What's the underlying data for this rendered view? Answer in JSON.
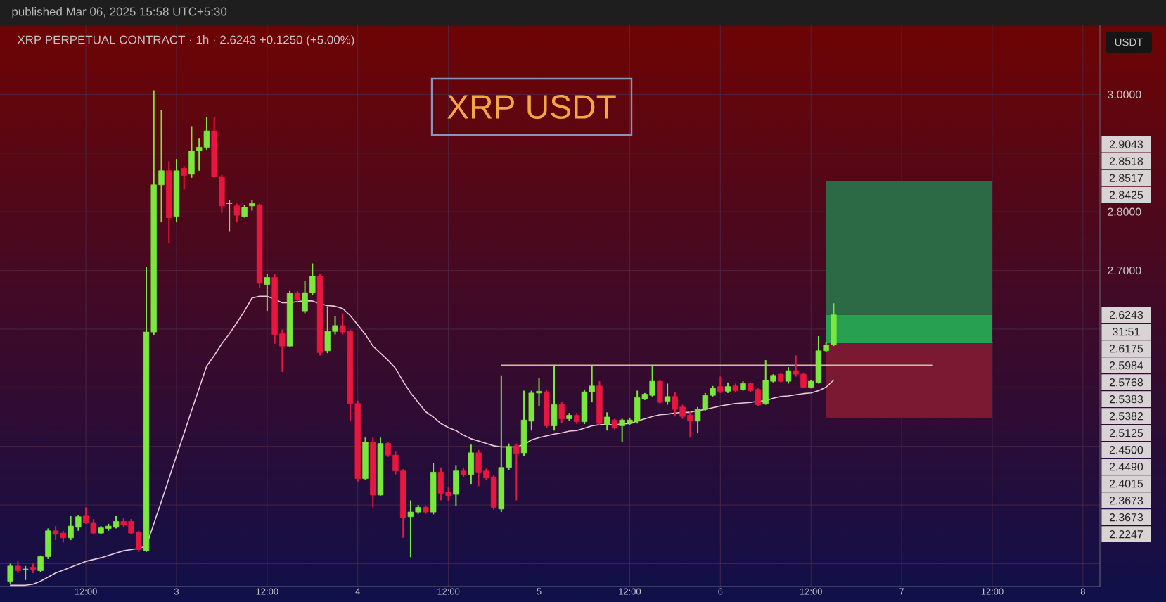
{
  "chart_data": {
    "type": "candlestick",
    "title": "XRP USDT",
    "subtitle": "XRP PERPETUAL CONTRACT · 1h · 2.6243 +0.1250 (+5.00%)",
    "ylabel": "USDT",
    "annotations": [
      "published Mar 06, 2025 15:58 UTC+5:30",
      "2.9043",
      "2.8518",
      "2.8517",
      "2.8425",
      {
        "text": "2.6243",
        "y": 2.6243
      },
      "31:51",
      "2.6175",
      "2.5984",
      "2.5768",
      "2.5383",
      "2.5382",
      "2.5125",
      "2.4500",
      "2.4490",
      "2.4015",
      "2.3673",
      "2.3673",
      "2.2247"
    ],
    "x": [
      "2025-03-02T02:00",
      "2025-03-02T03:00",
      "2025-03-02T04:00",
      "2025-03-02T05:00",
      "2025-03-02T06:00",
      "2025-03-02T07:00",
      "2025-03-02T08:00",
      "2025-03-02T09:00",
      "2025-03-02T10:00",
      "2025-03-02T11:00",
      "2025-03-02T12:00",
      "2025-03-02T13:00",
      "2025-03-02T14:00",
      "2025-03-02T15:00",
      "2025-03-02T16:00",
      "2025-03-02T17:00",
      "2025-03-02T18:00",
      "2025-03-02T19:00",
      "2025-03-02T20:00",
      "2025-03-02T21:00",
      "2025-03-02T22:00",
      "2025-03-02T23:00",
      "2025-03-03T00:00",
      "2025-03-03T01:00",
      "2025-03-03T02:00",
      "2025-03-03T03:00",
      "2025-03-03T04:00",
      "2025-03-03T05:00",
      "2025-03-03T06:00",
      "2025-03-03T07:00",
      "2025-03-03T08:00",
      "2025-03-03T09:00",
      "2025-03-03T10:00",
      "2025-03-03T11:00",
      "2025-03-03T12:00",
      "2025-03-03T13:00",
      "2025-03-03T14:00",
      "2025-03-03T15:00",
      "2025-03-03T16:00",
      "2025-03-03T17:00",
      "2025-03-03T18:00",
      "2025-03-03T19:00",
      "2025-03-03T20:00",
      "2025-03-03T21:00",
      "2025-03-03T22:00",
      "2025-03-03T23:00",
      "2025-03-04T00:00",
      "2025-03-04T01:00",
      "2025-03-04T02:00",
      "2025-03-04T03:00",
      "2025-03-04T04:00",
      "2025-03-04T05:00",
      "2025-03-04T06:00",
      "2025-03-04T07:00",
      "2025-03-04T08:00",
      "2025-03-04T09:00",
      "2025-03-04T10:00",
      "2025-03-04T11:00",
      "2025-03-04T12:00",
      "2025-03-04T13:00",
      "2025-03-04T14:00",
      "2025-03-04T15:00",
      "2025-03-04T16:00",
      "2025-03-04T17:00",
      "2025-03-04T18:00",
      "2025-03-04T19:00",
      "2025-03-04T20:00",
      "2025-03-04T21:00",
      "2025-03-04T22:00",
      "2025-03-04T23:00",
      "2025-03-05T00:00",
      "2025-03-05T01:00",
      "2025-03-05T02:00",
      "2025-03-05T03:00",
      "2025-03-05T04:00",
      "2025-03-05T05:00",
      "2025-03-05T06:00",
      "2025-03-05T07:00",
      "2025-03-05T08:00",
      "2025-03-05T09:00",
      "2025-03-05T10:00",
      "2025-03-05T11:00",
      "2025-03-05T12:00",
      "2025-03-05T13:00",
      "2025-03-05T14:00",
      "2025-03-05T15:00",
      "2025-03-05T16:00",
      "2025-03-05T17:00",
      "2025-03-05T18:00",
      "2025-03-05T19:00",
      "2025-03-05T20:00",
      "2025-03-05T21:00",
      "2025-03-05T22:00",
      "2025-03-05T23:00",
      "2025-03-06T00:00",
      "2025-03-06T01:00",
      "2025-03-06T02:00",
      "2025-03-06T03:00",
      "2025-03-06T04:00",
      "2025-03-06T05:00",
      "2025-03-06T06:00",
      "2025-03-06T07:00",
      "2025-03-06T08:00",
      "2025-03-06T09:00",
      "2025-03-06T10:00",
      "2025-03-06T11:00",
      "2025-03-06T12:00",
      "2025-03-06T13:00",
      "2025-03-06T14:00",
      "2025-03-06T15:00"
    ],
    "series": [
      {
        "type": "line",
        "color": "#2c6a45",
        "x": [
          "2025-03-06T14:00",
          "2025-03-07T12:00"
        ],
        "values": [
          2.8518,
          2.8518
        ],
        "lower": [
          2.6243,
          2.6243
        ],
        "upper": [
          2.8518,
          2.8518
        ]
      },
      {
        "type": "line",
        "color": "#27a052",
        "x": [
          "2025-03-06T14:00",
          "2025-03-07T12:00"
        ],
        "values": [
          2.5768,
          2.5768
        ],
        "lower": [
          2.5768,
          2.5768
        ],
        "upper": [
          2.6243,
          2.6243
        ]
      },
      {
        "type": "line",
        "color": "#7a1931",
        "x": [
          "2025-03-06T14:00",
          "2025-03-07T12:00"
        ],
        "values": [
          2.449,
          2.449
        ],
        "lower": [
          2.449,
          2.449
        ],
        "upper": [
          2.5768,
          2.5768
        ]
      },
      {
        "type": "line",
        "color": "#e8cbd5",
        "values": [
          2.163,
          2.163,
          2.163,
          2.165,
          2.17,
          2.177,
          2.184,
          2.189,
          2.194,
          2.199,
          2.204,
          2.207,
          2.21,
          2.214,
          2.218,
          2.222,
          2.224,
          2.226,
          2.23,
          2.268,
          2.306,
          2.345,
          2.384,
          2.422,
          2.461,
          2.499,
          2.537,
          2.555,
          2.575,
          2.592,
          2.611,
          2.631,
          2.653,
          2.656,
          2.656,
          2.651,
          2.645,
          2.645,
          2.647,
          2.648,
          2.648,
          2.643,
          2.64,
          2.639,
          2.635,
          2.623,
          2.607,
          2.591,
          2.571,
          2.559,
          2.547,
          2.533,
          2.511,
          2.491,
          2.475,
          2.459,
          2.45,
          2.439,
          2.432,
          2.427,
          2.419,
          2.413,
          2.409,
          2.405,
          2.401,
          2.399,
          2.399,
          2.399,
          2.403,
          2.411,
          2.415,
          2.418,
          2.421,
          2.423,
          2.426,
          2.427,
          2.431,
          2.435,
          2.437,
          2.437,
          2.437,
          2.438,
          2.439,
          2.443,
          2.447,
          2.451,
          2.454,
          2.455,
          2.457,
          2.458,
          2.458,
          2.461,
          2.463,
          2.466,
          2.469,
          2.471,
          2.473,
          2.474,
          2.475,
          2.477,
          2.478,
          2.482,
          2.485,
          2.486,
          2.488,
          2.49,
          2.491,
          2.495,
          2.501,
          2.513
        ]
      },
      {
        "type": "line",
        "color": "#d8b8a8",
        "x": [
          "2025-03-04T19:00",
          "2025-03-07T04:00"
        ],
        "values": [
          2.5383,
          2.5383
        ]
      },
      {
        "ohlc": [
          [
            2.17,
            2.2,
            2.166,
            2.196
          ],
          [
            2.196,
            2.204,
            2.184,
            2.188
          ],
          [
            2.19,
            2.196,
            2.172,
            2.191
          ],
          [
            2.194,
            2.2,
            2.184,
            2.19
          ],
          [
            2.188,
            2.214,
            2.186,
            2.212
          ],
          [
            2.212,
            2.26,
            2.208,
            2.256
          ],
          [
            2.256,
            2.264,
            2.24,
            2.25
          ],
          [
            2.252,
            2.256,
            2.236,
            2.244
          ],
          [
            2.244,
            2.281,
            2.24,
            2.264
          ],
          [
            2.262,
            2.282,
            2.256,
            2.28
          ],
          [
            2.281,
            2.296,
            2.268,
            2.27
          ],
          [
            2.27,
            2.276,
            2.25,
            2.252
          ],
          [
            2.252,
            2.264,
            2.25,
            2.261
          ],
          [
            2.26,
            2.268,
            2.256,
            2.264
          ],
          [
            2.262,
            2.281,
            2.26,
            2.272
          ],
          [
            2.272,
            2.278,
            2.262,
            2.266
          ],
          [
            2.272,
            2.276,
            2.25,
            2.252
          ],
          [
            2.254,
            2.256,
            2.22,
            2.224
          ],
          [
            2.222,
            2.706,
            2.22,
            2.595
          ],
          [
            2.595,
            3.007,
            2.59,
            2.846
          ],
          [
            2.846,
            2.974,
            2.782,
            2.87
          ],
          [
            2.87,
            2.886,
            2.746,
            2.79
          ],
          [
            2.792,
            2.89,
            2.782,
            2.87
          ],
          [
            2.874,
            2.878,
            2.838,
            2.862
          ],
          [
            2.864,
            2.946,
            2.858,
            2.904
          ],
          [
            2.904,
            2.926,
            2.87,
            2.91
          ],
          [
            2.91,
            2.962,
            2.906,
            2.938
          ],
          [
            2.938,
            2.962,
            2.858,
            2.86
          ],
          [
            2.86,
            2.863,
            2.798,
            2.81
          ],
          [
            2.814,
            2.82,
            2.766,
            2.815
          ],
          [
            2.81,
            2.814,
            2.782,
            2.794
          ],
          [
            2.792,
            2.811,
            2.79,
            2.808
          ],
          [
            2.81,
            2.82,
            2.802,
            2.814
          ],
          [
            2.812,
            2.814,
            2.67,
            2.678
          ],
          [
            2.676,
            2.694,
            2.631,
            2.688
          ],
          [
            2.688,
            2.694,
            2.575,
            2.591
          ],
          [
            2.592,
            2.599,
            2.527,
            2.571
          ],
          [
            2.571,
            2.665,
            2.569,
            2.661
          ],
          [
            2.662,
            2.665,
            2.645,
            2.65
          ],
          [
            2.631,
            2.682,
            2.627,
            2.662
          ],
          [
            2.662,
            2.712,
            2.658,
            2.69
          ],
          [
            2.69,
            2.694,
            2.555,
            2.56
          ],
          [
            2.563,
            2.639,
            2.559,
            2.596
          ],
          [
            2.596,
            2.622,
            2.591,
            2.606
          ],
          [
            2.606,
            2.627,
            2.591,
            2.595
          ],
          [
            2.596,
            2.599,
            2.443,
            2.473
          ],
          [
            2.473,
            2.478,
            2.34,
            2.345
          ],
          [
            2.345,
            2.415,
            2.343,
            2.407
          ],
          [
            2.407,
            2.415,
            2.296,
            2.317
          ],
          [
            2.317,
            2.415,
            2.316,
            2.405
          ],
          [
            2.405,
            2.407,
            2.382,
            2.385
          ],
          [
            2.385,
            2.391,
            2.352,
            2.358
          ],
          [
            2.358,
            2.361,
            2.244,
            2.278
          ],
          [
            2.28,
            2.308,
            2.211,
            2.288
          ],
          [
            2.288,
            2.3,
            2.285,
            2.296
          ],
          [
            2.296,
            2.298,
            2.285,
            2.288
          ],
          [
            2.288,
            2.372,
            2.284,
            2.356
          ],
          [
            2.356,
            2.364,
            2.308,
            2.32
          ],
          [
            2.322,
            2.33,
            2.306,
            2.316
          ],
          [
            2.318,
            2.368,
            2.298,
            2.358
          ],
          [
            2.358,
            2.364,
            2.348,
            2.352
          ],
          [
            2.352,
            2.403,
            2.336,
            2.389
          ],
          [
            2.389,
            2.394,
            2.332,
            2.356
          ],
          [
            2.358,
            2.362,
            2.342,
            2.346
          ],
          [
            2.348,
            2.352,
            2.292,
            2.296
          ],
          [
            2.293,
            2.521,
            2.288,
            2.364
          ],
          [
            2.364,
            2.405,
            2.36,
            2.4
          ],
          [
            2.401,
            2.405,
            2.308,
            2.388
          ],
          [
            2.389,
            2.495,
            2.384,
            2.445
          ],
          [
            2.443,
            2.495,
            2.427,
            2.491
          ],
          [
            2.491,
            2.517,
            2.469,
            2.494
          ],
          [
            2.493,
            2.497,
            2.432,
            2.435
          ],
          [
            2.435,
            2.539,
            2.427,
            2.471
          ],
          [
            2.471,
            2.475,
            2.44,
            2.447
          ],
          [
            2.447,
            2.457,
            2.443,
            2.453
          ],
          [
            2.453,
            2.457,
            2.438,
            2.442
          ],
          [
            2.442,
            2.497,
            2.438,
            2.493
          ],
          [
            2.493,
            2.537,
            2.475,
            2.503
          ],
          [
            2.503,
            2.511,
            2.437,
            2.439
          ],
          [
            2.437,
            2.458,
            2.427,
            2.45
          ],
          [
            2.445,
            2.447,
            2.429,
            2.432
          ],
          [
            2.435,
            2.447,
            2.407,
            2.445
          ],
          [
            2.439,
            2.449,
            2.436,
            2.445
          ],
          [
            2.443,
            2.495,
            2.439,
            2.483
          ],
          [
            2.481,
            2.491,
            2.479,
            2.489
          ],
          [
            2.487,
            2.539,
            2.485,
            2.511
          ],
          [
            2.511,
            2.513,
            2.473,
            2.475
          ],
          [
            2.477,
            2.507,
            2.471,
            2.485
          ],
          [
            2.485,
            2.493,
            2.451,
            2.463
          ],
          [
            2.467,
            2.471,
            2.447,
            2.451
          ],
          [
            2.453,
            2.459,
            2.415,
            2.443
          ],
          [
            2.443,
            2.467,
            2.423,
            2.463
          ],
          [
            2.463,
            2.491,
            2.461,
            2.487
          ],
          [
            2.487,
            2.503,
            2.485,
            2.499
          ],
          [
            2.502,
            2.519,
            2.491,
            2.494
          ],
          [
            2.494,
            2.509,
            2.491,
            2.502
          ],
          [
            2.503,
            2.507,
            2.493,
            2.495
          ],
          [
            2.497,
            2.511,
            2.495,
            2.507
          ],
          [
            2.507,
            2.509,
            2.493,
            2.495
          ],
          [
            2.497,
            2.499,
            2.469,
            2.471
          ],
          [
            2.473,
            2.547,
            2.471,
            2.513
          ],
          [
            2.511,
            2.523,
            2.509,
            2.521
          ],
          [
            2.523,
            2.525,
            2.509,
            2.511
          ],
          [
            2.511,
            2.535,
            2.507,
            2.529
          ],
          [
            2.529,
            2.555,
            2.519,
            2.523
          ],
          [
            2.523,
            2.525,
            2.499,
            2.501
          ],
          [
            2.501,
            2.513,
            2.499,
            2.511
          ],
          [
            2.509,
            2.588,
            2.507,
            2.563
          ],
          [
            2.563,
            2.577,
            2.561,
            2.573
          ],
          [
            2.573,
            2.644,
            2.571,
            2.6243
          ]
        ],
        "colors": [
          "#7ae83c",
          "#e8173f",
          "#7ae83c",
          "#e8173f",
          "#7ae83c",
          "#7ae83c",
          "#e8173f",
          "#e8173f",
          "#7ae83c",
          "#7ae83c",
          "#e8173f",
          "#e8173f",
          "#7ae83c",
          "#7ae83c",
          "#7ae83c",
          "#e8173f",
          "#e8173f",
          "#e8173f",
          "#7ae83c",
          "#7ae83c",
          "#7ae83c",
          "#e8173f",
          "#7ae83c",
          "#e8173f",
          "#7ae83c",
          "#7ae83c",
          "#7ae83c",
          "#e8173f",
          "#e8173f",
          "#7ae83c",
          "#e8173f",
          "#7ae83c",
          "#7ae83c",
          "#e8173f",
          "#7ae83c",
          "#e8173f",
          "#e8173f",
          "#7ae83c",
          "#e8173f",
          "#7ae83c",
          "#7ae83c",
          "#e8173f",
          "#7ae83c",
          "#7ae83c",
          "#e8173f",
          "#e8173f",
          "#e8173f",
          "#7ae83c",
          "#e8173f",
          "#7ae83c",
          "#e8173f",
          "#e8173f",
          "#e8173f",
          "#7ae83c",
          "#7ae83c",
          "#e8173f",
          "#7ae83c",
          "#e8173f",
          "#e8173f",
          "#7ae83c",
          "#e8173f",
          "#7ae83c",
          "#e8173f",
          "#e8173f",
          "#e8173f",
          "#7ae83c",
          "#7ae83c",
          "#e8173f",
          "#7ae83c",
          "#7ae83c",
          "#7ae83c",
          "#e8173f",
          "#7ae83c",
          "#e8173f",
          "#7ae83c",
          "#e8173f",
          "#7ae83c",
          "#7ae83c",
          "#e8173f",
          "#7ae83c",
          "#e8173f",
          "#7ae83c",
          "#7ae83c",
          "#7ae83c",
          "#7ae83c",
          "#7ae83c",
          "#e8173f",
          "#7ae83c",
          "#e8173f",
          "#e8173f",
          "#e8173f",
          "#7ae83c",
          "#7ae83c",
          "#7ae83c",
          "#e8173f",
          "#7ae83c",
          "#e8173f",
          "#7ae83c",
          "#e8173f",
          "#e8173f",
          "#7ae83c",
          "#7ae83c",
          "#e8173f",
          "#7ae83c",
          "#e8173f",
          "#e8173f",
          "#7ae83c",
          "#7ae83c",
          "#7ae83c",
          "#7ae83c"
        ]
      }
    ],
    "xlim": [
      "2025-03-02T00:38",
      "2025-03-08T02:15"
    ],
    "ylim": [
      2.161,
      3.118
    ],
    "xticks": [
      {
        "value": "2025-03-02T12:00",
        "label": "12:00"
      },
      {
        "value": "2025-03-03",
        "label": "3"
      },
      {
        "value": "2025-03-03T12:00",
        "label": "12:00"
      },
      {
        "value": "2025-03-04",
        "label": "4"
      },
      {
        "value": "2025-03-04T12:00",
        "label": "12:00"
      },
      {
        "value": "2025-03-05",
        "label": "5"
      },
      {
        "value": "2025-03-05T12:00",
        "label": "12:00"
      },
      {
        "value": "2025-03-06",
        "label": "6"
      },
      {
        "value": "2025-03-06T12:00",
        "label": "12:00"
      },
      {
        "value": "2025-03-07",
        "label": "7"
      },
      {
        "value": "2025-03-07T12:00",
        "label": "12:00"
      },
      {
        "value": "2025-03-08",
        "label": "8"
      }
    ],
    "yticks": [
      {
        "value": 3.0,
        "label": "3.0000"
      },
      {
        "value": 2.9,
        "label": null
      },
      {
        "value": 2.8,
        "label": "2.8000"
      },
      {
        "value": 2.7,
        "label": "2.7000"
      },
      {
        "value": 2.6,
        "label": null
      },
      {
        "value": 2.5,
        "label": null
      },
      {
        "value": 2.4,
        "label": null
      },
      {
        "value": 2.3,
        "label": null
      },
      {
        "value": 2.2,
        "label": null
      }
    ],
    "grid": true
  }
}
